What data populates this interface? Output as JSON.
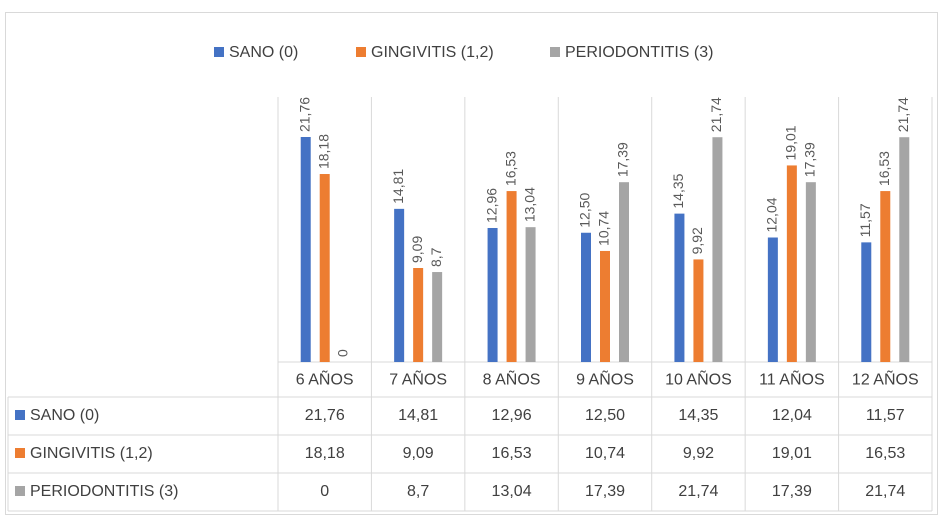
{
  "chart_data": {
    "type": "bar",
    "categories": [
      "6 AÑOS",
      "7 AÑOS",
      "8 AÑOS",
      "9 AÑOS",
      "10 AÑOS",
      "11 AÑOS",
      "12 AÑOS"
    ],
    "series": [
      {
        "name": "SANO (0)",
        "color": "#4472c4",
        "values": [
          21.76,
          14.81,
          12.96,
          12.5,
          14.35,
          12.04,
          11.57
        ],
        "value_labels": [
          "21,76",
          "14,81",
          "12,96",
          "12,50",
          "14,35",
          "12,04",
          "11,57"
        ]
      },
      {
        "name": "GINGIVITIS (1,2)",
        "color": "#ed7d31",
        "values": [
          18.18,
          9.09,
          16.53,
          10.74,
          9.92,
          19.01,
          16.53
        ],
        "value_labels": [
          "18,18",
          "9,09",
          "16,53",
          "10,74",
          "9,92",
          "19,01",
          "16,53"
        ]
      },
      {
        "name": "PERIODONTITIS (3)",
        "color": "#a5a5a5",
        "values": [
          0,
          8.7,
          13.04,
          17.39,
          21.74,
          17.39,
          21.74
        ],
        "value_labels": [
          "0",
          "8,7",
          "13,04",
          "17,39",
          "21,74",
          "17,39",
          "21,74"
        ]
      }
    ],
    "legend": "top",
    "data_table": true
  }
}
